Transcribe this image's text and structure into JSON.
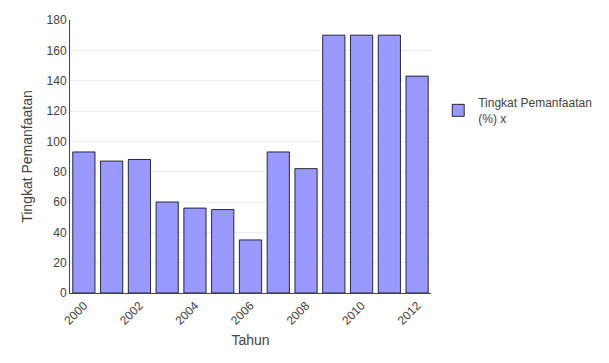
{
  "chart_data": {
    "type": "bar",
    "categories": [
      "2000",
      null,
      "2002",
      null,
      "2004",
      null,
      "2006",
      null,
      "2008",
      null,
      "2010",
      null,
      "2012"
    ],
    "series": [
      {
        "name": "Tingkat Pemanfaatan\n(%) x",
        "color": "#9999FF",
        "values": [
          93,
          87,
          88,
          60,
          56,
          55,
          35,
          93,
          82,
          170,
          170,
          170,
          143
        ]
      }
    ],
    "xlabel": "Tahun",
    "ylabel": "Tingkat Pemanfaatan",
    "ylim": [
      0,
      180
    ],
    "yticks": [
      0,
      20,
      40,
      60,
      80,
      100,
      120,
      140,
      160,
      180
    ],
    "grid": true,
    "legend": "right"
  }
}
